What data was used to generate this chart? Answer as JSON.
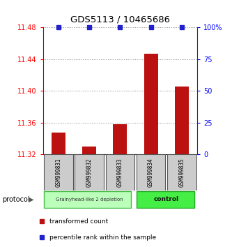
{
  "title": "GDS5113 / 10465686",
  "samples": [
    "GSM999831",
    "GSM999832",
    "GSM999833",
    "GSM999834",
    "GSM999835"
  ],
  "bar_values": [
    11.347,
    11.33,
    11.358,
    11.447,
    11.405
  ],
  "percentile_values": [
    100,
    100,
    100,
    100,
    100
  ],
  "ylim_left": [
    11.32,
    11.48
  ],
  "ylim_right": [
    0,
    100
  ],
  "yticks_left": [
    11.32,
    11.36,
    11.4,
    11.44,
    11.48
  ],
  "yticks_right": [
    0,
    25,
    50,
    75,
    100
  ],
  "ytick_labels_right": [
    "0",
    "25",
    "50",
    "75",
    "100%"
  ],
  "bar_color": "#bb1111",
  "scatter_color": "#2222cc",
  "grid_color": "#888888",
  "bg_color": "#ffffff",
  "protocol_groups": [
    {
      "label": "Grainyhead-like 2 depletion",
      "indices": [
        0,
        1,
        2
      ],
      "color": "#bbffbb",
      "border_color": "#44bb44"
    },
    {
      "label": "control",
      "indices": [
        3,
        4
      ],
      "color": "#44ee44",
      "border_color": "#22aa22"
    }
  ],
  "protocol_label": "protocol",
  "legend_items": [
    {
      "color": "#bb1111",
      "marker": "s",
      "label": "transformed count"
    },
    {
      "color": "#2222cc",
      "marker": "s",
      "label": "percentile rank within the sample"
    }
  ],
  "xticklabel_bg": "#cccccc",
  "bar_width": 0.45
}
